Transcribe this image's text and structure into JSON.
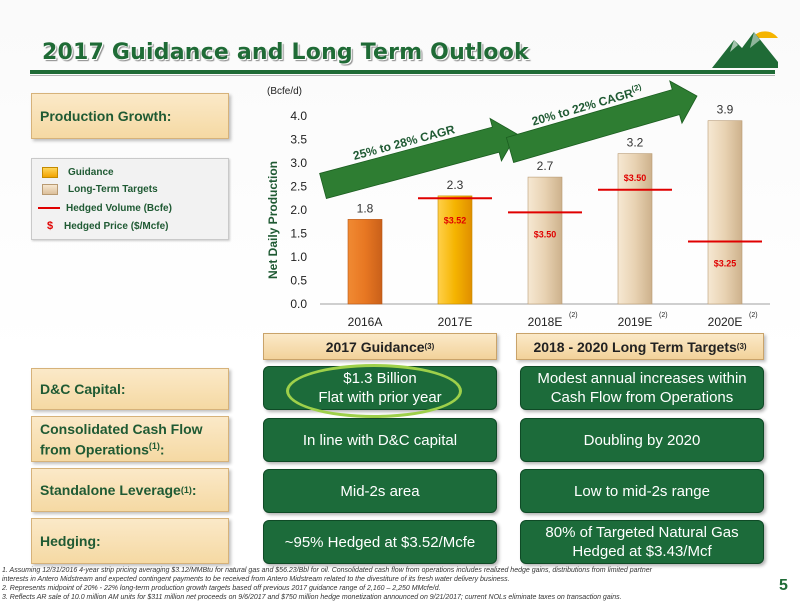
{
  "title": "2017 Guidance and Long Term Outlook",
  "left_labels": {
    "production": "Production Growth:",
    "capital": "D&C Capital:",
    "cashflow_line1": "Consolidated Cash Flow",
    "cashflow_line2": "from Operations",
    "cashflow_sup": "(1)",
    "cashflow_colon": ":",
    "leverage": "Standalone Leverage",
    "leverage_sup": "(1)",
    "leverage_colon": ":",
    "hedging": "Hedging:"
  },
  "legend": {
    "guidance": "Guidance",
    "long_term": "Long-Term Targets",
    "hedged_volume": "Hedged Volume (Bcfe)",
    "dollar": "$",
    "hedged_price": "Hedged Price ($/Mcfe)"
  },
  "headers": {
    "guidance": "2017 Guidance",
    "guidance_sup": "(3)",
    "long_term": "2018 - 2020 Long Term Targets",
    "long_term_sup": "(3)"
  },
  "table": {
    "capital_guidance_l1": "$1.3 Billion",
    "capital_guidance_l2": "Flat with prior year",
    "capital_target_l1": "Modest annual increases within",
    "capital_target_l2": "Cash Flow from Operations",
    "cashflow_guidance": "In line with D&C capital",
    "cashflow_target": "Doubling by 2020",
    "leverage_guidance": "Mid-2s area",
    "leverage_target": "Low to mid-2s range",
    "hedging_guidance": "~95% Hedged at $3.52/Mcfe",
    "hedging_target_l1": "80% of Targeted Natural Gas",
    "hedging_target_l2": "Hedged at $3.43/Mcf"
  },
  "footnotes": [
    "1.  Assuming 12/31/2016 4-year strip pricing averaging $3.12/MMBtu for natural gas and $56.23/Bbl for oil.  Consolidated cash flow from operations includes realized hedge gains, distributions from limited partner",
    "     interests in Antero Midstream and expected contingent payments to be received from Antero Midstream related to the divestiture of its fresh water delivery business.",
    "2.  Represents midpoint of 20% - 22% long-term production growth targets based off previous 2017 guidance range of 2,160 – 2,250 MMcfe/d.",
    "3.  Reflects AR sale of 10.0 million AM units for $311 million net proceeds on 9/6/2017 and $750 million hedge monetization announced on 9/21/2017; current NOLs eliminate taxes on transaction gains."
  ],
  "page_number": "5",
  "colors": {
    "brand_green": "#1f6b36",
    "bar_actual": "#e87722",
    "bar_guidance": "#f5b400",
    "bar_target": "#e8d2b2",
    "hedge_red": "#e00000",
    "arrow_green": "#2e7d32",
    "highlight": "#9ed04a"
  },
  "chart_data": {
    "type": "bar",
    "ylabel": "Net Daily Production",
    "unit_label": "(Bcfe/d)",
    "ylim": [
      0,
      4.0
    ],
    "yticks": [
      "0.0",
      "0.5",
      "1.0",
      "1.5",
      "2.0",
      "2.5",
      "3.0",
      "3.5",
      "4.0"
    ],
    "categories": [
      "2016A",
      "2017E",
      "2018E",
      "2019E",
      "2020E"
    ],
    "category_notes": [
      "",
      "",
      "(2)",
      "(2)",
      "(2)"
    ],
    "values": [
      1.8,
      2.3,
      2.7,
      3.2,
      3.9
    ],
    "value_labels": [
      "1.8",
      "2.3",
      "2.7",
      "3.2",
      "3.9"
    ],
    "bar_kinds": [
      "actual",
      "guidance",
      "target",
      "target",
      "target"
    ],
    "hedged_volume": [
      null,
      2.25,
      1.95,
      2.43,
      1.33
    ],
    "hedged_price": [
      null,
      "$3.52",
      "$3.50",
      "$3.50",
      "$3.25"
    ],
    "annotations": [
      {
        "text": "25% to 28% CAGR",
        "sup": ""
      },
      {
        "text": "20% to 22% CAGR",
        "sup": "(2)"
      }
    ],
    "grid": false,
    "legend": "left"
  }
}
